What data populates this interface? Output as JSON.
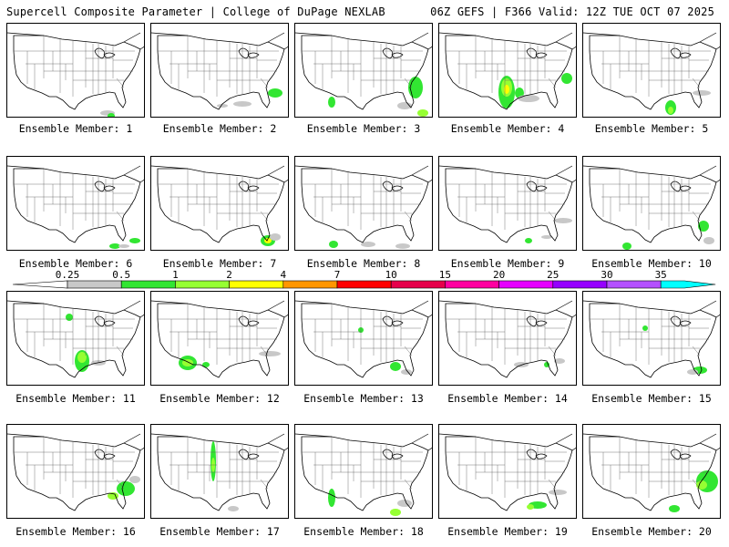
{
  "header": {
    "left": "Supercell Composite Parameter | College of DuPage NEXLAB",
    "right": "06Z GEFS | F366 Valid: 12Z TUE OCT 07 2025"
  },
  "members": [
    {
      "label": "Ensemble Member: 1"
    },
    {
      "label": "Ensemble Member: 2"
    },
    {
      "label": "Ensemble Member: 3"
    },
    {
      "label": "Ensemble Member: 4"
    },
    {
      "label": "Ensemble Member: 5"
    },
    {
      "label": "Ensemble Member: 6"
    },
    {
      "label": "Ensemble Member: 7"
    },
    {
      "label": "Ensemble Member: 8"
    },
    {
      "label": "Ensemble Member: 9"
    },
    {
      "label": "Ensemble Member: 10"
    },
    {
      "label": "Ensemble Member: 11"
    },
    {
      "label": "Ensemble Member: 12"
    },
    {
      "label": "Ensemble Member: 13"
    },
    {
      "label": "Ensemble Member: 14"
    },
    {
      "label": "Ensemble Member: 15"
    },
    {
      "label": "Ensemble Member: 16"
    },
    {
      "label": "Ensemble Member: 17"
    },
    {
      "label": "Ensemble Member: 18"
    },
    {
      "label": "Ensemble Member: 19"
    },
    {
      "label": "Ensemble Member: 20"
    }
  ],
  "colorbar": {
    "labels": [
      "0.25",
      "0.5",
      "1",
      "2",
      "4",
      "7",
      "10",
      "15",
      "20",
      "25",
      "30",
      "35"
    ],
    "colors": [
      "#c8c8c8",
      "#32e632",
      "#96ff32",
      "#ffff00",
      "#ff9600",
      "#ff0000",
      "#e6004b",
      "#ff00a0",
      "#e600ff",
      "#9600ff",
      "#b450ff",
      "#00ffff"
    ]
  }
}
